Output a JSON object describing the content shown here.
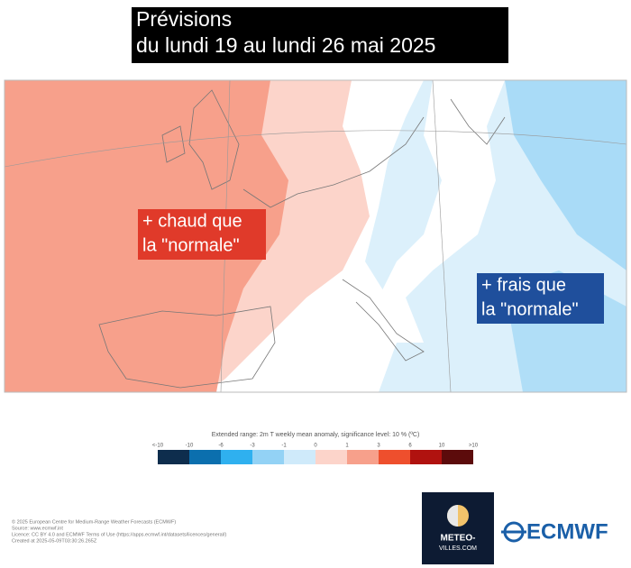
{
  "header": {
    "title_line1": "Prévisions",
    "title_line2": "du lundi 19 au lundi 26 mai 2025"
  },
  "map": {
    "label_warm": {
      "line1": "+ chaud que",
      "line2": "la \"normale\""
    },
    "label_cold": {
      "line1": "+ frais que",
      "line2": "la \"normale\""
    }
  },
  "legend": {
    "caption": "Extended range: 2m T weekly mean anomaly, significance level: 10 % (ºC)",
    "labels": [
      "<-10",
      "-10",
      "-6",
      "-3",
      "-1",
      "0",
      "1",
      "3",
      "6",
      "10",
      ">10"
    ],
    "colors": [
      "#0e2d4d",
      "#0b6fae",
      "#2fb0ef",
      "#93d2f5",
      "#cfeafa",
      "#fcd4ca",
      "#f7a08b",
      "#ee4f2d",
      "#b0120f",
      "#5c0b0b"
    ]
  },
  "footer": {
    "lines": [
      "© 2025 European Centre for Medium-Range Weather Forecasts (ECMWF)",
      "Source: www.ecmwf.int",
      "Licence: CC BY 4.0 and ECMWF Terms of Use (https://apps.ecmwf.int/datasets/licences/general/)",
      "Created at 2025-05-09T03:30:26.265Z"
    ]
  },
  "logos": {
    "meteo_line1": "METEO-",
    "meteo_line2": "VILLES.COM",
    "ecmwf": "ECMWF"
  }
}
